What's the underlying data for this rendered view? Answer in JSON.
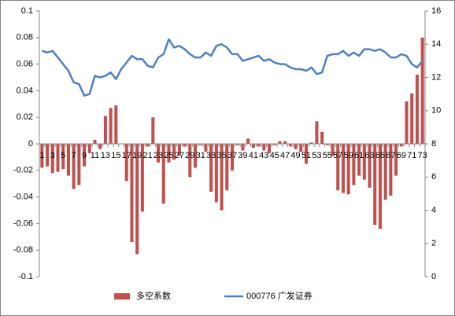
{
  "chart_data": {
    "type": "bar",
    "categories": [
      1,
      null,
      3,
      null,
      5,
      null,
      7,
      null,
      9,
      null,
      11,
      null,
      13,
      null,
      15,
      null,
      17,
      null,
      19,
      null,
      21,
      null,
      23,
      null,
      25,
      null,
      27,
      null,
      29,
      null,
      31,
      null,
      33,
      null,
      35,
      null,
      37,
      null,
      39,
      null,
      41,
      null,
      43,
      null,
      45,
      null,
      47,
      null,
      49,
      null,
      51,
      null,
      53,
      null,
      55,
      null,
      57,
      null,
      59,
      null,
      61,
      null,
      63,
      null,
      65,
      null,
      67,
      null,
      69,
      null,
      71,
      null,
      73
    ],
    "series": [
      {
        "name": "多空系数",
        "type": "bar",
        "color": "#c0504d",
        "axis": "y",
        "values": [
          -0.018,
          -0.017,
          -0.022,
          -0.021,
          -0.019,
          -0.024,
          -0.034,
          -0.031,
          -0.017,
          -0.007,
          0.003,
          -0.004,
          0.021,
          0.027,
          0.029,
          0,
          -0.028,
          -0.074,
          -0.083,
          -0.051,
          -0.002,
          0.02,
          -0.014,
          -0.045,
          -0.014,
          -0.012,
          -0.009,
          -0.002,
          -0.025,
          -0.018,
          -0.001,
          -0.006,
          -0.036,
          -0.044,
          -0.05,
          -0.035,
          -0.02,
          -0.001,
          -0.005,
          0.004,
          -0.003,
          -0.002,
          -0.005,
          -0.007,
          -0.001,
          0.002,
          0.002,
          -0.002,
          -0.004,
          -0.006,
          -0.015,
          0.001,
          0.017,
          0.009,
          -0.001,
          -0.009,
          -0.035,
          -0.037,
          -0.038,
          -0.031,
          -0.024,
          -0.027,
          -0.033,
          -0.061,
          -0.064,
          -0.042,
          -0.039,
          -0.024,
          -0.002,
          0.032,
          0.038,
          0.052,
          0.08
        ]
      },
      {
        "name": "000776 广发证券",
        "type": "line",
        "color": "#4f81bd",
        "axis": "y2",
        "values": [
          13.6,
          13.5,
          13.6,
          13.2,
          12.8,
          12.4,
          11.7,
          11.6,
          10.9,
          11.0,
          12.1,
          12.0,
          12.1,
          12.3,
          11.9,
          12.5,
          12.9,
          13.3,
          13.1,
          13.1,
          12.7,
          12.6,
          13.2,
          13.4,
          14.3,
          13.8,
          13.9,
          13.7,
          13.4,
          13.2,
          13.2,
          13.5,
          13.3,
          13.9,
          14.0,
          13.8,
          13.4,
          13.4,
          13.0,
          13.1,
          13.2,
          13.3,
          13.0,
          13.1,
          12.9,
          12.8,
          12.8,
          12.6,
          12.5,
          12.5,
          12.4,
          12.6,
          12.2,
          12.3,
          13.3,
          13.4,
          13.4,
          13.6,
          13.3,
          13.5,
          13.3,
          13.7,
          13.7,
          13.6,
          13.7,
          13.5,
          13.2,
          13.2,
          13.4,
          13.3,
          12.8,
          12.6,
          13.0
        ]
      }
    ],
    "ylim": [
      -0.1,
      0.1
    ],
    "yticks": [
      -0.1,
      -0.08,
      -0.06,
      -0.04,
      -0.02,
      0,
      0.02,
      0.04,
      0.06,
      0.08,
      0.1
    ],
    "y2lim": [
      0,
      16
    ],
    "y2ticks": [
      0,
      2,
      4,
      6,
      8,
      10,
      12,
      14,
      16
    ],
    "legend": "bottom"
  }
}
